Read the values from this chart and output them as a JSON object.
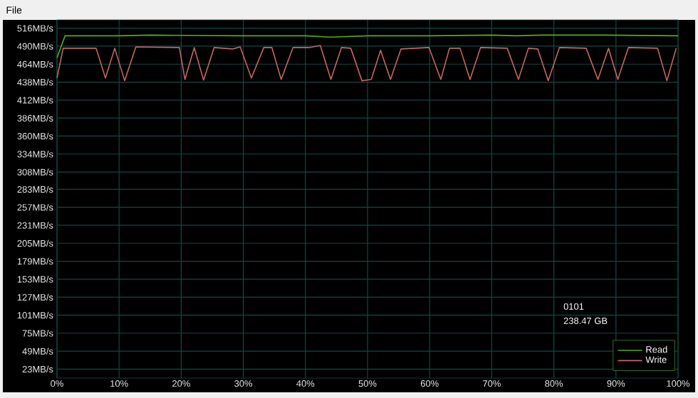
{
  "chart_data": {
    "type": "line",
    "xlim": [
      0,
      100
    ],
    "ylim": [
      10,
      528
    ],
    "xticks": [
      {
        "value": 0,
        "label": "0%"
      },
      {
        "value": 10,
        "label": "10%"
      },
      {
        "value": 20,
        "label": "20%"
      },
      {
        "value": 30,
        "label": "30%"
      },
      {
        "value": 40,
        "label": "40%"
      },
      {
        "value": 50,
        "label": "50%"
      },
      {
        "value": 60,
        "label": "60%"
      },
      {
        "value": 70,
        "label": "70%"
      },
      {
        "value": 80,
        "label": "80%"
      },
      {
        "value": 90,
        "label": "90%"
      },
      {
        "value": 100,
        "label": "100%"
      }
    ],
    "yticks": [
      {
        "value": 23,
        "label": "23MB/s"
      },
      {
        "value": 49,
        "label": "49MB/s"
      },
      {
        "value": 75,
        "label": "75MB/s"
      },
      {
        "value": 101,
        "label": "101MB/s"
      },
      {
        "value": 127,
        "label": "127MB/s"
      },
      {
        "value": 153,
        "label": "153MB/s"
      },
      {
        "value": 179,
        "label": "179MB/s"
      },
      {
        "value": 205,
        "label": "205MB/s"
      },
      {
        "value": 231,
        "label": "231MB/s"
      },
      {
        "value": 257,
        "label": "257MB/s"
      },
      {
        "value": 283,
        "label": "283MB/s"
      },
      {
        "value": 308,
        "label": "308MB/s"
      },
      {
        "value": 334,
        "label": "334MB/s"
      },
      {
        "value": 360,
        "label": "360MB/s"
      },
      {
        "value": 386,
        "label": "386MB/s"
      },
      {
        "value": 412,
        "label": "412MB/s"
      },
      {
        "value": 438,
        "label": "438MB/s"
      },
      {
        "value": 464,
        "label": "464MB/s"
      },
      {
        "value": 490,
        "label": "490MB/s"
      },
      {
        "value": 516,
        "label": "516MB/s"
      }
    ],
    "grid": true,
    "legend": "bottom right",
    "annotations": [
      "File",
      "0101",
      "238.47 GB"
    ],
    "series": [
      {
        "name": "Read",
        "color": "#4caf1e",
        "x": [
          0,
          1.3,
          10,
          15,
          30,
          40,
          44,
          50,
          60,
          70,
          74,
          78,
          88,
          100
        ],
        "values": [
          473,
          505,
          505,
          506,
          505,
          505,
          503,
          505,
          505,
          506,
          505,
          506,
          506,
          505
        ]
      },
      {
        "name": "Write",
        "color": "#c86464",
        "x": [
          0,
          1.0,
          6.3,
          7.8,
          9.3,
          10.9,
          12.7,
          19.7,
          20.6,
          22.1,
          23.6,
          25.3,
          28.3,
          29.5,
          31.3,
          33.3,
          34.6,
          36.1,
          38.0,
          40.6,
          42.4,
          44.1,
          45.8,
          47.3,
          49.1,
          50.6,
          52.1,
          53.7,
          55.4,
          59.9,
          61.8,
          63.2,
          64.9,
          66.5,
          68.2,
          72.5,
          74.3,
          75.9,
          77.4,
          79.1,
          80.9,
          85.2,
          87.1,
          88.8,
          90.3,
          92.0,
          96.7,
          98.2,
          99.7
        ],
        "values": [
          444,
          487,
          487,
          444,
          487,
          440,
          489,
          488,
          442,
          488,
          441,
          488,
          486,
          489,
          444,
          488,
          488,
          442,
          488,
          488,
          491,
          442,
          488,
          487,
          440,
          442,
          484,
          442,
          486,
          488,
          442,
          487,
          487,
          442,
          488,
          487,
          442,
          487,
          486,
          440,
          488,
          487,
          442,
          487,
          442,
          488,
          487,
          440,
          487
        ]
      }
    ]
  }
}
